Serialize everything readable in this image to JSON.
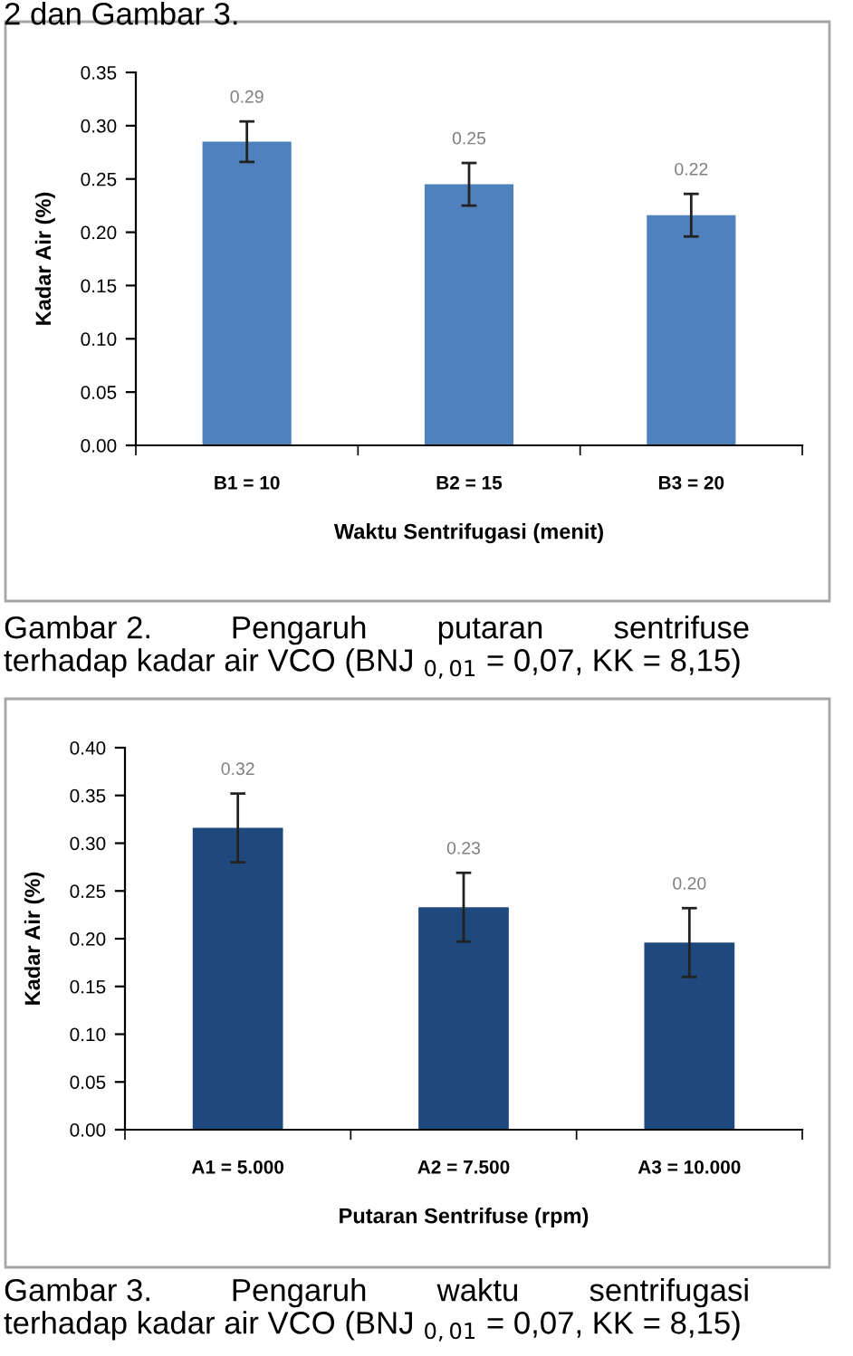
{
  "chart_data": [
    {
      "type": "bar",
      "xlabel": "Waktu Sentrifugasi (menit)",
      "ylabel": "Kadar Air (%)",
      "categories": [
        "B1 = 10",
        "B2 = 15",
        "B3 = 20"
      ],
      "values": [
        0.285,
        0.245,
        0.216
      ],
      "errors": [
        0.019,
        0.02,
        0.02
      ],
      "color": "#4f81bd",
      "value_labels": [
        "0.29",
        "0.25",
        "0.22"
      ],
      "ylim": [
        0,
        0.35
      ],
      "yticks": [
        {
          "value": 0,
          "label": "0.00"
        },
        {
          "value": 0.05,
          "label": "0.05"
        },
        {
          "value": 0.1,
          "label": "0.10"
        },
        {
          "value": 0.15,
          "label": "0.15"
        },
        {
          "value": 0.2,
          "label": "0.20"
        },
        {
          "value": 0.25,
          "label": "0.25"
        },
        {
          "value": 0.3,
          "label": "0.30"
        },
        {
          "value": 0.35,
          "label": "0.35"
        }
      ],
      "grid": false,
      "legend": false,
      "annotations": [
        "2 dan Gambar 3.",
        "Gambar 2.         Pengaruh        putaran        sentrifuse\nterhadap kadar air VCO (BNJ $_{0,01}$ = 0,07, KK = 8,15)"
      ]
    },
    {
      "type": "bar",
      "xlabel": "Putaran Sentrifuse (rpm)",
      "ylabel": "Kadar Air (%)",
      "categories": [
        "A1 = 5.000",
        "A2 = 7.500",
        "A3 = 10.000"
      ],
      "values": [
        0.316,
        0.233,
        0.196
      ],
      "errors": [
        0.036,
        0.036,
        0.036
      ],
      "color": "#1f497d",
      "value_labels": [
        "0.32",
        "0.23",
        "0.20"
      ],
      "ylim": [
        0,
        0.4
      ],
      "yticks": [
        {
          "value": 0,
          "label": "0.00"
        },
        {
          "value": 0.05,
          "label": "0.05"
        },
        {
          "value": 0.1,
          "label": "0.10"
        },
        {
          "value": 0.15,
          "label": "0.15"
        },
        {
          "value": 0.2,
          "label": "0.20"
        },
        {
          "value": 0.25,
          "label": "0.25"
        },
        {
          "value": 0.3,
          "label": "0.30"
        },
        {
          "value": 0.35,
          "label": "0.35"
        },
        {
          "value": 0.4,
          "label": "0.40"
        }
      ],
      "grid": false,
      "legend": false,
      "annotations": [
        "Gambar 3.         Pengaruh        waktu        sentrifugasi\nterhadap kadar air VCO (BNJ $_{0,01}$ = 0,07, KK = 8,15)"
      ]
    }
  ]
}
